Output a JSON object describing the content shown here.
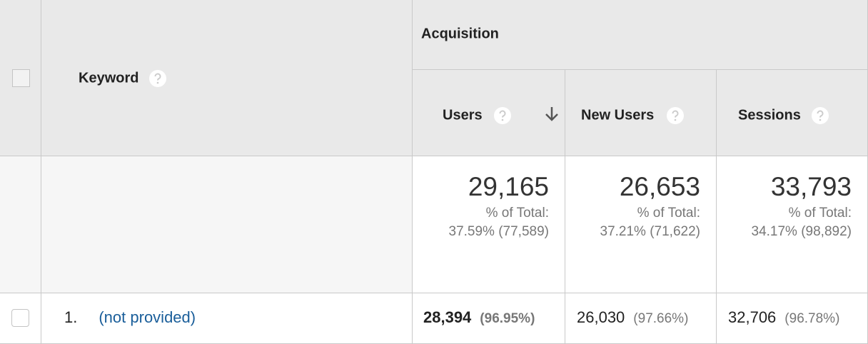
{
  "header": {
    "group": "Acquisition",
    "columns": [
      "Keyword",
      "Users",
      "New Users",
      "Sessions"
    ]
  },
  "totals": [
    {
      "value": "29,165",
      "caption": "% of Total:",
      "detail": "37.59% (77,589)"
    },
    {
      "value": "26,653",
      "caption": "% of Total:",
      "detail": "37.21% (71,622)"
    },
    {
      "value": "33,793",
      "caption": "% of Total:",
      "detail": "34.17% (98,892)"
    }
  ],
  "rows": [
    {
      "index": "1.",
      "keyword": "(not provided)",
      "cells": [
        {
          "value": "28,394",
          "pct": "(96.95%)"
        },
        {
          "value": "26,030",
          "pct": "(97.66%)"
        },
        {
          "value": "32,706",
          "pct": "(96.78%)"
        }
      ]
    }
  ]
}
